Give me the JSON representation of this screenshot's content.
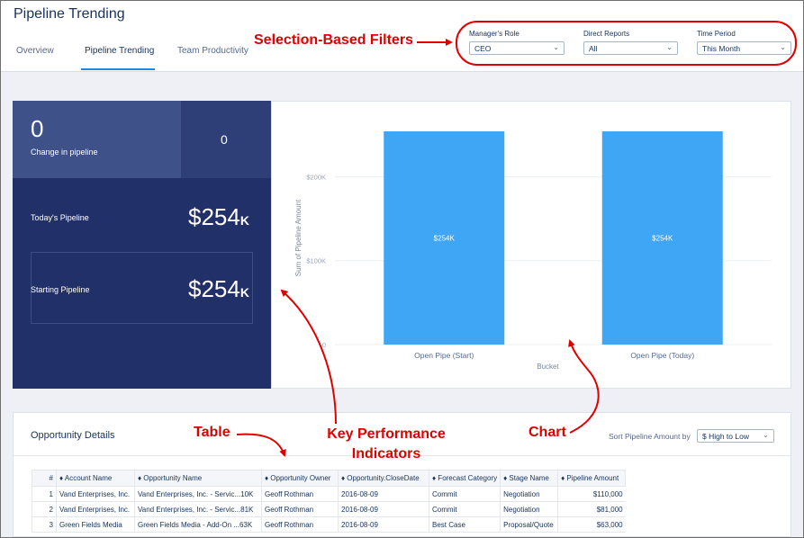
{
  "header": {
    "title": "Pipeline Trending",
    "tabs": [
      {
        "label": "Overview"
      },
      {
        "label": "Pipeline Trending"
      },
      {
        "label": "Team Productivity"
      }
    ]
  },
  "filters": [
    {
      "label": "Manager's Role",
      "value": "CEO"
    },
    {
      "label": "Direct Reports",
      "value": "All"
    },
    {
      "label": "Time Period",
      "value": "This Month"
    }
  ],
  "annotations": {
    "filters": "Selection-Based Filters",
    "table": "Table",
    "kpi_line1": "Key Performance",
    "kpi_line2": "Indicators",
    "chart": "Chart",
    "color": "#e00000"
  },
  "kpi": {
    "change_value": "0",
    "change_label": "Change in pipeline",
    "change_side_value": "0",
    "today_label": "Today's Pipeline",
    "today_value": "$254",
    "today_suffix": "K",
    "starting_label": "Starting Pipeline",
    "starting_value": "$254",
    "starting_suffix": "K",
    "colors": {
      "panel": "#22306a",
      "top": "#3f5189"
    }
  },
  "chart_data": {
    "type": "bar",
    "categories": [
      "Open Pipe (Start)",
      "Open Pipe (Today)"
    ],
    "values": [
      254,
      254
    ],
    "value_unit": "K",
    "data_labels": [
      "$254K",
      "$254K"
    ],
    "xlabel": "Bucket",
    "ylabel": "Sum of Pipeline Amount",
    "ylim": [
      0,
      254
    ],
    "yticks": [
      0,
      100,
      200
    ],
    "ytick_labels": [
      "0",
      "$100K",
      "$200K"
    ],
    "grid": true,
    "bar_color": "#3fa5f5"
  },
  "table": {
    "title": "Opportunity Details",
    "sort_label": "Sort Pipeline Amount by",
    "sort_value": "$ High to Low",
    "columns": [
      "#",
      "♦ Account Name",
      "♦ Opportunity Name",
      "♦ Opportunity Owner",
      "♦ Opportunity.CloseDate",
      "♦ Forecast Category",
      "♦ Stage Name",
      "♦ Pipeline Amount"
    ],
    "rows": [
      [
        "1",
        "Vand Enterprises, Inc.",
        "Vand Enterprises, Inc. - Servic...10K",
        "Geoff Rothman",
        "2016-08-09",
        "Commit",
        "Negotiation",
        "$110,000"
      ],
      [
        "2",
        "Vand Enterprises, Inc.",
        "Vand Enterprises, Inc. - Servic...81K",
        "Geoff Rothman",
        "2016-08-09",
        "Commit",
        "Negotiation",
        "$81,000"
      ],
      [
        "3",
        "Green Fields Media",
        "Green Fields Media - Add-On ...63K",
        "Geoff Rothman",
        "2016-08-09",
        "Best Case",
        "Proposal/Quote",
        "$63,000"
      ]
    ]
  }
}
